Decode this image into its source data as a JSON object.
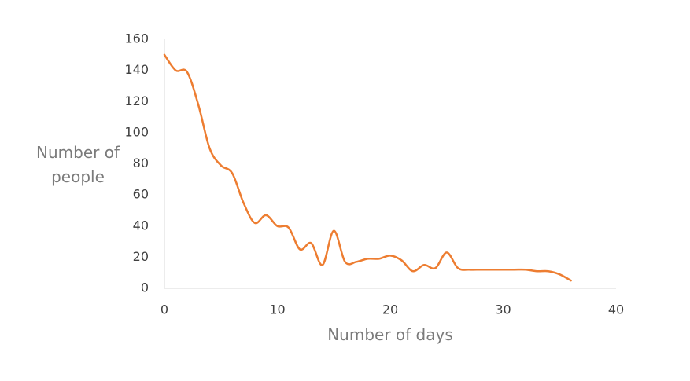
{
  "chart_data": {
    "type": "line",
    "x_label": "Number of days",
    "y_label": "Number of people",
    "x": [
      0,
      1,
      2,
      3,
      4,
      5,
      6,
      7,
      8,
      9,
      10,
      11,
      12,
      13,
      14,
      15,
      16,
      17,
      18,
      19,
      20,
      21,
      22,
      23,
      24,
      25,
      26,
      27,
      28,
      29,
      30,
      31,
      32,
      33,
      34,
      35,
      36
    ],
    "series": [
      {
        "color": "#ED7D31",
        "values": [
          150,
          140,
          139,
          118,
          90,
          79,
          74,
          55,
          42,
          47,
          40,
          39,
          25,
          29,
          15,
          37,
          17,
          17,
          19,
          19,
          21,
          18,
          11,
          15,
          13,
          23,
          13,
          12,
          12,
          12,
          12,
          12,
          12,
          11,
          11,
          9,
          5
        ]
      }
    ],
    "xlim": [
      0,
      40
    ],
    "xticks": [
      0,
      10,
      20,
      30,
      40
    ],
    "ylim": [
      0,
      160
    ],
    "yticks": [
      0,
      20,
      40,
      60,
      80,
      100,
      120,
      140,
      160
    ],
    "grid": false,
    "smooth": true
  }
}
